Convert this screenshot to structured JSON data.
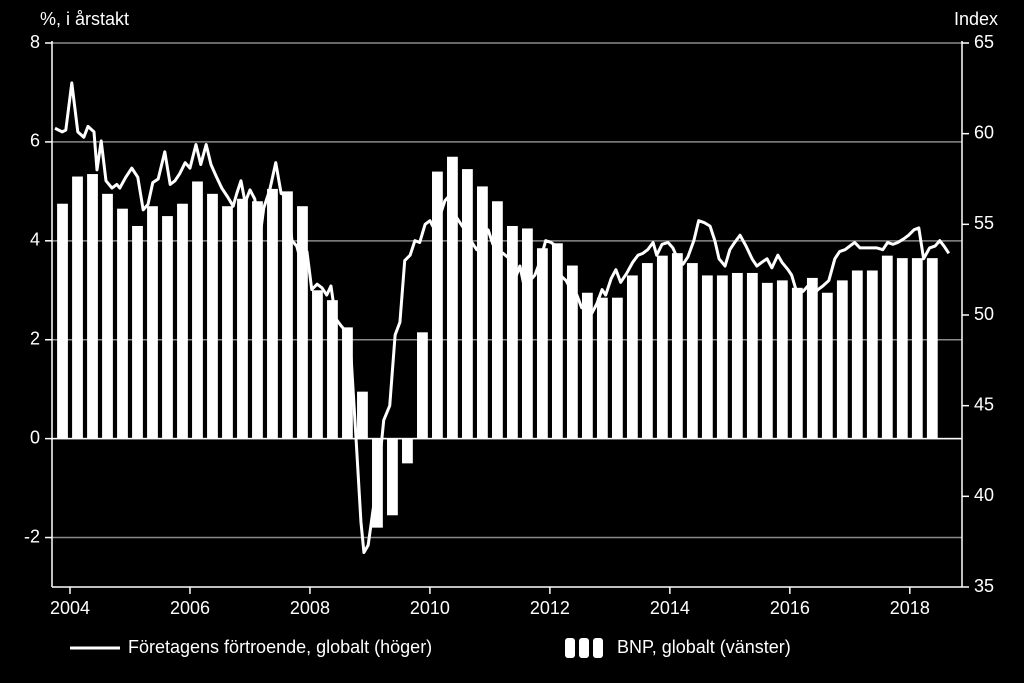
{
  "chart_data": {
    "type": "combo",
    "y_label": "%, i årstakt",
    "y2_label": "Index",
    "xlim": [
      2003.7,
      2018.87
    ],
    "xticks": [
      2004,
      2006,
      2008,
      2010,
      2012,
      2014,
      2016,
      2018
    ],
    "ylim": [
      -3,
      8
    ],
    "yticks": [
      -2,
      0,
      2,
      4,
      6,
      8
    ],
    "y2lim": [
      35,
      65
    ],
    "y2ticks": [
      35,
      40,
      45,
      50,
      55,
      60,
      65
    ],
    "grid": true,
    "legend": "bottom",
    "series": [
      {
        "name": "Företagens förtroende, globalt (höger)",
        "type": "line",
        "axis": "y2",
        "color": "#ffffff",
        "x": [
          2003.75,
          2003.87,
          2003.93,
          2004.03,
          2004.13,
          2004.23,
          2004.3,
          2004.4,
          2004.45,
          2004.52,
          2004.6,
          2004.7,
          2004.78,
          2004.83,
          2004.93,
          2005.03,
          2005.13,
          2005.22,
          2005.3,
          2005.38,
          2005.47,
          2005.58,
          2005.67,
          2005.75,
          2005.83,
          2005.92,
          2006.0,
          2006.1,
          2006.18,
          2006.27,
          2006.35,
          2006.43,
          2006.53,
          2006.63,
          2006.72,
          2006.78,
          2006.85,
          2006.92,
          2007.0,
          2007.08,
          2007.17,
          2007.23,
          2007.33,
          2007.43,
          2007.52,
          2007.62,
          2007.7,
          2007.78,
          2007.87,
          2007.95,
          2008.03,
          2008.12,
          2008.2,
          2008.28,
          2008.35,
          2008.43,
          2008.52,
          2008.6,
          2008.68,
          2008.77,
          2008.85,
          2008.9,
          2008.97,
          2009.05,
          2009.13,
          2009.23,
          2009.33,
          2009.42,
          2009.5,
          2009.58,
          2009.67,
          2009.75,
          2009.83,
          2009.92,
          2010.0,
          2010.08,
          2010.17,
          2010.25,
          2010.33,
          2010.42,
          2010.5,
          2010.6,
          2010.68,
          2010.78,
          2010.87,
          2010.97,
          2011.05,
          2011.13,
          2011.22,
          2011.33,
          2011.42,
          2011.5,
          2011.57,
          2011.67,
          2011.75,
          2011.83,
          2011.93,
          2012.02,
          2012.1,
          2012.17,
          2012.27,
          2012.35,
          2012.45,
          2012.53,
          2012.62,
          2012.7,
          2012.78,
          2012.87,
          2012.93,
          2013.02,
          2013.1,
          2013.18,
          2013.28,
          2013.38,
          2013.47,
          2013.55,
          2013.63,
          2013.72,
          2013.78,
          2013.87,
          2013.97,
          2014.05,
          2014.13,
          2014.22,
          2014.3,
          2014.4,
          2014.48,
          2014.57,
          2014.67,
          2014.75,
          2014.82,
          2014.92,
          2015.0,
          2015.08,
          2015.17,
          2015.27,
          2015.37,
          2015.45,
          2015.53,
          2015.62,
          2015.7,
          2015.8,
          2015.87,
          2015.97,
          2016.03,
          2016.12,
          2016.22,
          2016.3,
          2016.38,
          2016.47,
          2016.55,
          2016.65,
          2016.75,
          2016.83,
          2016.92,
          2017.0,
          2017.08,
          2017.17,
          2017.25,
          2017.35,
          2017.45,
          2017.55,
          2017.63,
          2017.72,
          2017.8,
          2017.9,
          2017.98,
          2018.07,
          2018.15,
          2018.23,
          2018.33,
          2018.42,
          2018.5,
          2018.57,
          2018.65
        ],
        "values": [
          60.3,
          60.1,
          60.2,
          62.8,
          60.1,
          59.8,
          60.4,
          60.1,
          58.0,
          59.6,
          57.4,
          57.0,
          57.2,
          57.0,
          57.6,
          58.1,
          57.6,
          55.8,
          56.1,
          57.3,
          57.5,
          59.0,
          57.2,
          57.4,
          57.8,
          58.4,
          58.1,
          59.4,
          58.3,
          59.4,
          58.3,
          57.7,
          57.0,
          56.5,
          56.0,
          56.7,
          57.4,
          56.2,
          56.9,
          56.4,
          54.4,
          55.9,
          56.9,
          58.4,
          56.7,
          56.6,
          54.1,
          53.8,
          52.7,
          53.5,
          51.4,
          51.7,
          51.5,
          51.1,
          51.6,
          49.8,
          49.4,
          49.1,
          48.0,
          43.1,
          38.6,
          36.9,
          37.3,
          39.2,
          40.9,
          44.2,
          45.0,
          48.9,
          49.6,
          53.0,
          53.3,
          54.1,
          54.0,
          55.0,
          55.2,
          54.7,
          55.5,
          56.3,
          56.6,
          55.5,
          55.1,
          54.6,
          54.1,
          53.6,
          54.1,
          54.7,
          53.9,
          53.6,
          53.4,
          53.1,
          52.0,
          52.7,
          51.6,
          51.9,
          52.2,
          52.9,
          54.1,
          54.0,
          53.8,
          52.2,
          51.9,
          51.4,
          51.1,
          50.4,
          50.6,
          50.1,
          50.6,
          51.4,
          51.1,
          52.0,
          52.5,
          51.8,
          52.3,
          52.9,
          53.3,
          53.4,
          53.6,
          54.0,
          53.3,
          53.9,
          54.0,
          53.7,
          53.1,
          52.8,
          53.2,
          54.1,
          55.2,
          55.1,
          54.9,
          54.1,
          53.1,
          52.7,
          53.6,
          54.0,
          54.4,
          53.8,
          53.1,
          52.7,
          52.9,
          53.1,
          52.6,
          53.3,
          52.9,
          52.5,
          52.2,
          51.2,
          51.3,
          51.6,
          51.1,
          51.4,
          51.6,
          51.9,
          53.1,
          53.5,
          53.6,
          53.8,
          54.0,
          53.7,
          53.7,
          53.7,
          53.7,
          53.6,
          54.0,
          53.9,
          54.0,
          54.2,
          54.4,
          54.7,
          54.8,
          53.1,
          53.7,
          53.8,
          54.1,
          53.8,
          53.4
        ]
      },
      {
        "name": "BNP, globalt (vänster)",
        "type": "bar",
        "color": "#ffffff",
        "x": [
          2003.875,
          2004.125,
          2004.375,
          2004.625,
          2004.875,
          2005.125,
          2005.375,
          2005.625,
          2005.875,
          2006.125,
          2006.375,
          2006.625,
          2006.875,
          2007.125,
          2007.375,
          2007.625,
          2007.875,
          2008.125,
          2008.375,
          2008.625,
          2008.875,
          2009.125,
          2009.375,
          2009.625,
          2009.875,
          2010.125,
          2010.375,
          2010.625,
          2010.875,
          2011.125,
          2011.375,
          2011.625,
          2011.875,
          2012.125,
          2012.375,
          2012.625,
          2012.875,
          2013.125,
          2013.375,
          2013.625,
          2013.875,
          2014.125,
          2014.375,
          2014.625,
          2014.875,
          2015.125,
          2015.375,
          2015.625,
          2015.875,
          2016.125,
          2016.375,
          2016.625,
          2016.875,
          2017.125,
          2017.375,
          2017.625,
          2017.875,
          2018.125,
          2018.375
        ],
        "values": [
          4.75,
          5.3,
          5.35,
          4.95,
          4.65,
          4.3,
          4.7,
          4.5,
          4.75,
          5.2,
          4.95,
          4.7,
          4.85,
          4.8,
          5.05,
          5.0,
          4.7,
          3.0,
          2.8,
          2.25,
          0.95,
          -1.8,
          -1.55,
          -0.5,
          2.15,
          5.4,
          5.7,
          5.45,
          5.1,
          4.8,
          4.3,
          4.25,
          3.85,
          3.95,
          3.5,
          2.95,
          2.85,
          2.85,
          3.3,
          3.55,
          3.7,
          3.75,
          3.55,
          3.3,
          3.3,
          3.35,
          3.35,
          3.15,
          3.2,
          3.05,
          3.25,
          2.95,
          3.2,
          3.4,
          3.4,
          3.7,
          3.65,
          3.65,
          3.65
        ]
      }
    ]
  }
}
